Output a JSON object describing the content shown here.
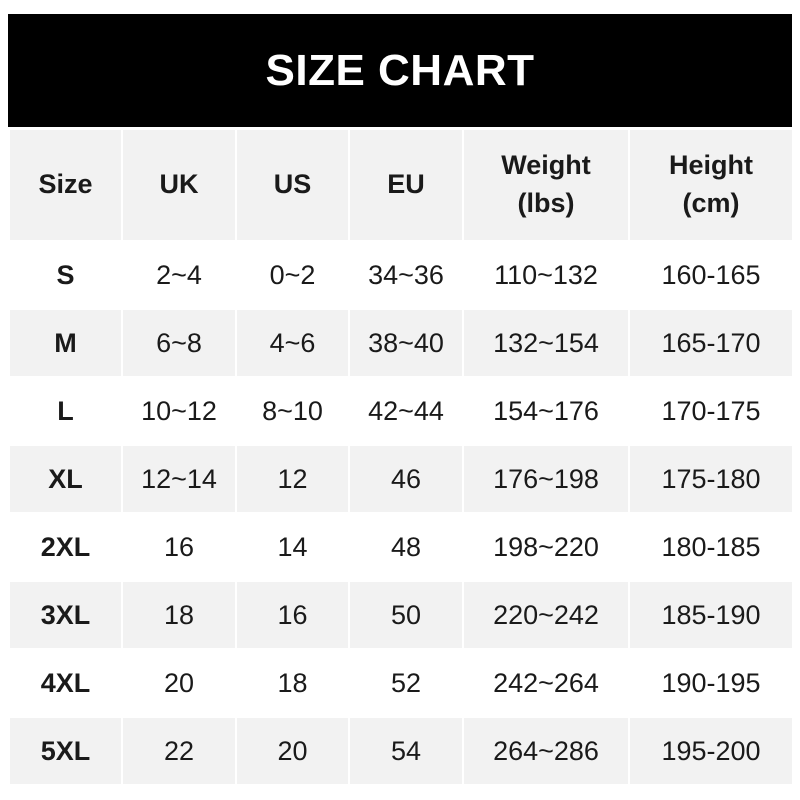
{
  "title": "SIZE CHART",
  "headers": [
    "Size",
    "UK",
    "US",
    "EU",
    "Weight\n(lbs)",
    "Height\n(cm)"
  ],
  "rows": [
    [
      "S",
      "2~4",
      "0~2",
      "34~36",
      "110~132",
      "160-165"
    ],
    [
      "M",
      "6~8",
      "4~6",
      "38~40",
      "132~154",
      "165-170"
    ],
    [
      "L",
      "10~12",
      "8~10",
      "42~44",
      "154~176",
      "170-175"
    ],
    [
      "XL",
      "12~14",
      "12",
      "46",
      "176~198",
      "175-180"
    ],
    [
      "2XL",
      "16",
      "14",
      "48",
      "198~220",
      "180-185"
    ],
    [
      "3XL",
      "18",
      "16",
      "50",
      "220~242",
      "185-190"
    ],
    [
      "4XL",
      "20",
      "18",
      "52",
      "242~264",
      "190-195"
    ],
    [
      "5XL",
      "22",
      "20",
      "54",
      "264~286",
      "195-200"
    ]
  ],
  "colors": {
    "banner": "#000000",
    "stripe": "#f2f2f2",
    "text": "#1a1a1a"
  }
}
